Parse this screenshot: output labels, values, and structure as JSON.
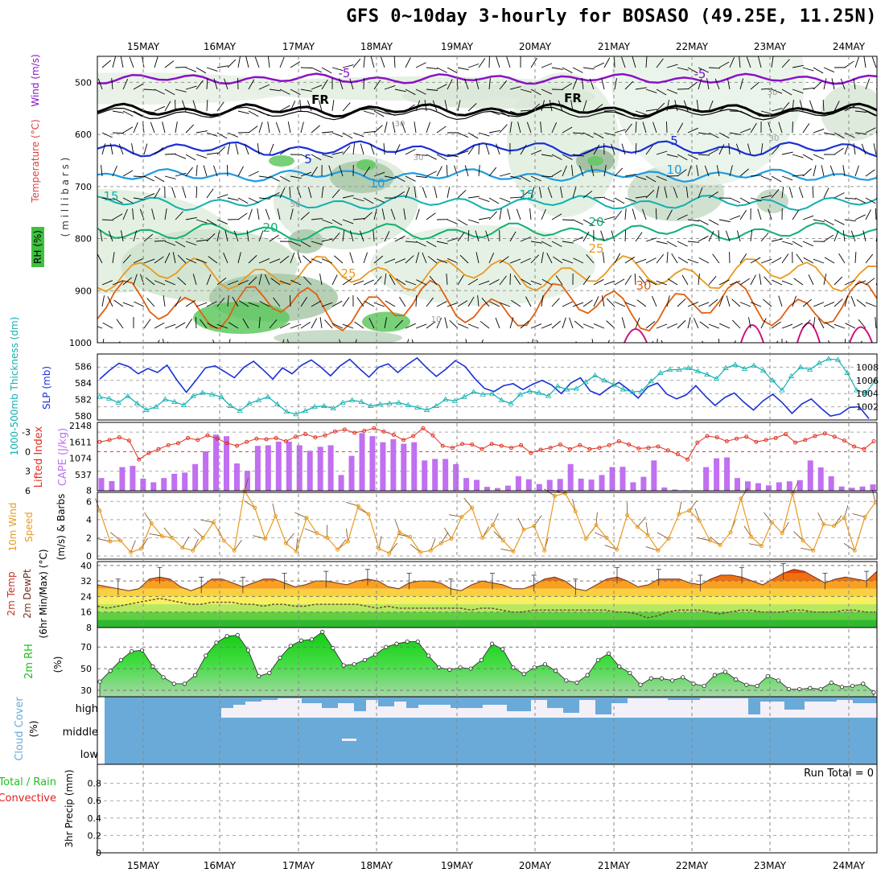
{
  "title": "GFS 0~10day 3-hourly for BOSASO (49.25E, 11.25N)",
  "date_labels": [
    "15MAY",
    "16MAY",
    "17MAY",
    "18MAY",
    "19MAY",
    "20MAY",
    "21MAY",
    "22MAY",
    "23MAY",
    "24MAY"
  ],
  "colors": {
    "purple": "#8a10c8",
    "black": "#000000",
    "blue": "#1a30d8",
    "lightblue": "#1e9be0",
    "teal": "#10b0b0",
    "green": "#10b070",
    "orange": "#e89a20",
    "darkorange": "#e06010",
    "magenta": "#d0107a",
    "cape": "#c070f0",
    "li_red": "#e03020",
    "wind_orange": "#e89a20",
    "rh_green": "#20c020",
    "cloud_blue": "#6aaad8",
    "precip_green": "#20c020",
    "precip_red": "#e02020"
  },
  "chart_data": [
    {
      "type": "area",
      "panel": "upper-air",
      "ylabel_parts": {
        "rh": "RH (%)",
        "temp": "Temperature (°C)",
        "wind": "Wind (m/s)",
        "mb": "( m i l l i b a r s )"
      },
      "yticks": [
        "500",
        "600",
        "700",
        "800",
        "900",
        "1000"
      ],
      "ylim": [
        1000,
        450
      ],
      "contour_labels": [
        {
          "text": "-5",
          "series": "purple"
        },
        {
          "text": "-5",
          "series": "purple"
        },
        {
          "text": "FR",
          "series": "black"
        },
        {
          "text": "FR",
          "series": "black"
        },
        {
          "text": "5",
          "series": "blue"
        },
        {
          "text": "5",
          "series": "blue"
        },
        {
          "text": "10",
          "series": "lightblue"
        },
        {
          "text": "10",
          "series": "lightblue"
        },
        {
          "text": "15",
          "series": "teal"
        },
        {
          "text": "15",
          "series": "teal"
        },
        {
          "text": "20",
          "series": "green"
        },
        {
          "text": "20",
          "series": "green"
        },
        {
          "text": "25",
          "series": "orange"
        },
        {
          "text": "25",
          "series": "orange"
        },
        {
          "text": "30",
          "series": "darkorange"
        },
        {
          "text": "30",
          "series": "gray"
        },
        {
          "text": "30",
          "series": "gray"
        },
        {
          "text": "30",
          "series": "gray"
        },
        {
          "text": "30",
          "series": "gray"
        },
        {
          "text": "50",
          "series": "gray"
        },
        {
          "text": "10",
          "series": "gray"
        }
      ]
    },
    {
      "type": "line",
      "panel": "slp-thickness",
      "ylabel_left": "1000-500mb Thickness (dm)",
      "ylabel_right": "SLP (mb)",
      "yticks_left": [
        "586",
        "584",
        "582",
        "580"
      ],
      "yticks_right": [
        "1008",
        "1006",
        "1004",
        "1002"
      ],
      "series": [
        {
          "name": "SLP (mb)",
          "values": [
            1006.2,
            1007.5,
            1008.6,
            1008.1,
            1007.0,
            1007.8,
            1007.2,
            1008.3,
            1006.1,
            1004.2,
            1006.0,
            1007.9,
            1008.2,
            1007.3,
            1006.4,
            1008.0,
            1008.9,
            1007.6,
            1006.2,
            1007.9,
            1007.0,
            1008.3,
            1009.1,
            1008.0,
            1006.7,
            1008.2,
            1009.2,
            1007.8,
            1006.5,
            1008.0,
            1008.5,
            1007.2,
            1008.4,
            1009.4,
            1007.9,
            1006.6,
            1007.7,
            1009.0,
            1008.1,
            1006.3,
            1004.8,
            1004.3,
            1005.2,
            1005.5,
            1004.6,
            1005.4,
            1006.0,
            1005.3,
            1004.0,
            1005.6,
            1006.4,
            1004.4,
            1003.8,
            1004.9,
            1005.7,
            1004.6,
            1003.3,
            1005.0,
            1005.6,
            1003.9,
            1003.2,
            1003.8,
            1005.2,
            1003.6,
            1002.2,
            1003.4,
            1004.1,
            1002.7,
            1001.5,
            1002.9,
            1003.9,
            1002.6,
            1001.0,
            1002.4,
            1003.2,
            1001.8,
            1000.6,
            1000.9,
            1001.9,
            1002.0,
            1000.2
          ]
        },
        {
          "name": "Thickness (dm)",
          "values": [
            582.3,
            582.1,
            581.6,
            582.4,
            581.5,
            580.7,
            581.1,
            582.0,
            581.7,
            581.3,
            582.4,
            582.8,
            582.6,
            582.3,
            581.2,
            580.6,
            581.5,
            581.9,
            582.3,
            581.4,
            580.5,
            580.2,
            580.6,
            581.1,
            581.2,
            580.9,
            581.6,
            581.9,
            581.7,
            581.2,
            581.4,
            581.5,
            581.6,
            581.3,
            581.0,
            580.7,
            581.2,
            582.0,
            581.8,
            582.3,
            582.9,
            582.6,
            582.7,
            581.9,
            581.5,
            582.6,
            583.0,
            582.8,
            582.4,
            583.6,
            583.2,
            583.3,
            584.1,
            584.9,
            584.3,
            583.8,
            583.2,
            582.9,
            583.0,
            584.2,
            585.2,
            585.6,
            585.6,
            585.8,
            585.4,
            585.0,
            584.5,
            585.8,
            586.2,
            585.7,
            586.1,
            585.5,
            584.3,
            583.1,
            584.8,
            585.9,
            585.6,
            586.4,
            586.9,
            586.8,
            585.2,
            583.1,
            582.8,
            584.3
          ]
        }
      ]
    },
    {
      "type": "bar",
      "panel": "cape-li",
      "ylabel_left": "Lifted Index",
      "ylabel_right": "CAPE (J/kg)",
      "yticks_left": [
        "-3",
        "0",
        "3",
        "6"
      ],
      "yticks_right": [
        "2148",
        "1611",
        "1074",
        "537",
        "8"
      ],
      "series": [
        {
          "name": "CAPE (J/kg)",
          "values": [
            420,
            320,
            780,
            820,
            400,
            280,
            420,
            560,
            600,
            880,
            1300,
            1850,
            1800,
            900,
            660,
            1480,
            1500,
            1620,
            1620,
            1500,
            1320,
            1450,
            1500,
            520,
            1150,
            1900,
            1800,
            1600,
            1700,
            1550,
            1600,
            1000,
            1050,
            1050,
            880,
            420,
            360,
            130,
            90,
            170,
            480,
            380,
            220,
            360,
            390,
            880,
            400,
            370,
            520,
            780,
            790,
            280,
            460,
            1000,
            110,
            40,
            20,
            8,
            780,
            1070,
            1100,
            420,
            310,
            250,
            180,
            280,
            310,
            350,
            1000,
            770,
            480,
            140,
            100,
            140,
            210
          ]
        },
        {
          "name": "Lifted Index",
          "values": [
            -1.5,
            -1.8,
            -2.2,
            -1.7,
            1.2,
            0.2,
            -0.4,
            -1.0,
            -1.3,
            -2.1,
            -1.8,
            -2.5,
            -2.0,
            -1.3,
            -0.9,
            -1.5,
            -2.0,
            -1.9,
            -2.1,
            -1.6,
            -2.3,
            -2.7,
            -2.2,
            -2.5,
            -3.1,
            -3.4,
            -2.9,
            -3.2,
            -3.6,
            -3.1,
            -2.6,
            -1.8,
            -2.4,
            -3.6,
            -2.5,
            -0.9,
            -0.6,
            -1.2,
            -1.1,
            -0.4,
            -1.2,
            -0.9,
            -0.6,
            -1.0,
            0.2,
            -0.3,
            -0.6,
            -1.1,
            -0.4,
            -1.0,
            -0.4,
            -0.6,
            -1.0,
            -1.6,
            -1.1,
            -0.5,
            -0.6,
            -0.8,
            -0.2,
            0.4,
            1.2,
            -1.4,
            -2.4,
            -2.2,
            -1.6,
            -2.0,
            -2.3,
            -1.5,
            -1.8,
            -2.1,
            -2.7,
            -1.4,
            -1.8,
            -2.4,
            -2.8,
            -2.3,
            -1.7,
            -0.8,
            -0.4,
            -1.6
          ]
        }
      ]
    },
    {
      "type": "line",
      "panel": "wind10m",
      "ylabel": "10m Wind Speed (m/s) & Barbs",
      "ylabel_parts": [
        "10m Wind",
        "Speed",
        "(m/s) & Barbs"
      ],
      "yticks": [
        "0",
        "2",
        "4",
        "6"
      ],
      "ylim": [
        0,
        7
      ],
      "series": [
        {
          "name": "10m Wind Speed",
          "values": [
            5.0,
            1.6,
            1.7,
            0.4,
            0.8,
            3.6,
            2.2,
            2.0,
            0.9,
            0.6,
            2.0,
            3.7,
            1.7,
            0.6,
            7.2,
            5.3,
            1.9,
            4.4,
            1.4,
            0.5,
            4.2,
            2.5,
            2.0,
            0.7,
            1.6,
            5.5,
            4.6,
            0.8,
            0.3,
            2.6,
            2.1,
            0.4,
            0.6,
            1.4,
            1.9,
            4.3,
            5.3,
            2.0,
            3.4,
            1.7,
            0.5,
            2.9,
            3.3,
            0.6,
            6.6,
            6.9,
            4.9,
            1.9,
            3.4,
            2.0,
            0.7,
            4.5,
            3.2,
            2.3,
            0.6,
            1.9,
            4.6,
            5.0,
            3.9,
            1.7,
            1.2,
            2.6,
            6.3,
            2.1,
            1.1,
            3.7,
            2.5,
            6.9,
            1.7,
            0.6,
            3.5,
            3.3,
            4.2,
            0.6,
            4.3,
            5.9
          ]
        }
      ]
    },
    {
      "type": "area",
      "panel": "temp2m",
      "ylabel_parts": [
        "2m Temp",
        "2m DewPt",
        "(6hr Min/Max) (°C)"
      ],
      "yticks": [
        "8",
        "16",
        "24",
        "32",
        "40"
      ],
      "ylim": [
        8,
        42
      ],
      "series": [
        {
          "name": "2m Temp",
          "values": [
            30,
            29,
            28,
            27,
            28,
            33,
            34,
            33,
            29,
            27,
            29,
            33,
            33,
            31,
            29,
            31,
            33,
            33,
            31,
            29,
            30,
            32,
            32,
            31,
            30,
            32,
            33,
            32,
            29,
            28,
            31,
            32,
            32,
            31,
            28,
            27,
            30,
            32,
            31,
            30,
            28,
            28,
            30,
            33,
            34,
            32,
            28,
            27,
            30,
            33,
            34,
            32,
            29,
            30,
            33,
            33,
            33,
            31,
            30,
            33,
            35,
            35,
            34,
            32,
            30,
            33,
            36,
            38,
            37,
            34,
            31,
            33,
            34,
            33,
            32,
            37
          ]
        },
        {
          "name": "2m DewPt",
          "values": [
            19,
            18,
            19,
            20,
            21,
            22,
            23,
            22,
            21,
            20,
            20,
            21,
            21,
            21,
            20,
            20,
            19,
            20,
            20,
            19,
            19,
            20,
            20,
            20,
            20,
            20,
            19,
            18,
            19,
            18,
            18,
            18,
            18,
            18,
            18,
            18,
            17,
            18,
            18,
            17,
            16,
            16,
            17,
            17,
            17,
            17,
            17,
            17,
            17,
            17,
            16,
            16,
            15,
            13,
            14,
            16,
            17,
            17,
            17,
            16,
            15,
            16,
            17,
            17,
            16,
            16,
            16,
            17,
            17,
            16,
            16,
            16,
            17,
            17,
            16,
            16
          ]
        }
      ]
    },
    {
      "type": "area",
      "panel": "rh2m",
      "ylabel": "2m RH (%)",
      "yticks": [
        "30",
        "50",
        "70"
      ],
      "ylim": [
        24,
        88
      ],
      "series": [
        {
          "name": "2m RH",
          "values": [
            38,
            48,
            58,
            66,
            67,
            52,
            42,
            36,
            36,
            44,
            62,
            74,
            80,
            81,
            67,
            43,
            46,
            60,
            71,
            76,
            77,
            84,
            69,
            53,
            54,
            58,
            63,
            70,
            73,
            75,
            75,
            62,
            51,
            49,
            51,
            50,
            58,
            73,
            68,
            51,
            45,
            51,
            54,
            48,
            39,
            37,
            44,
            58,
            64,
            52,
            46,
            35,
            41,
            41,
            39,
            42,
            36,
            34,
            44,
            47,
            40,
            35,
            34,
            43,
            39,
            31,
            31,
            32,
            31,
            37,
            33,
            34,
            36,
            28
          ]
        }
      ]
    },
    {
      "type": "bar",
      "panel": "cloud",
      "ylabel": "Cloud Cover (%)",
      "levels": [
        "high",
        "middle",
        "low"
      ]
    },
    {
      "type": "bar",
      "panel": "precip",
      "ylabel": "3hr Precip (mm)",
      "legend_left": {
        "total": "Total / Rain",
        "convective": "Convective"
      },
      "yticks": [
        "0",
        "0.2",
        "0.4",
        "0.6",
        "0.8"
      ],
      "ylim": [
        0,
        1
      ],
      "run_total": "Run Total = 0",
      "values": []
    }
  ]
}
